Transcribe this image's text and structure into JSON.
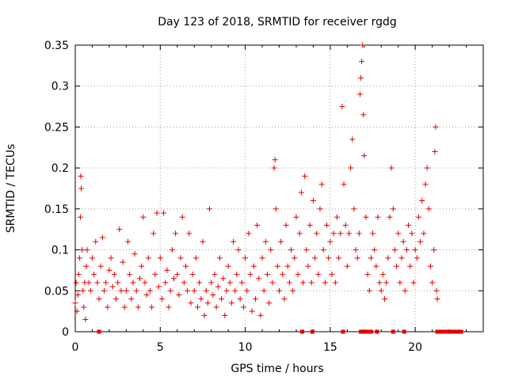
{
  "chart_data": {
    "type": "scatter",
    "title": "Day 123 of 2018, SRMTID for receiver rgdg",
    "xlabel": "GPS time / hours",
    "ylabel": "SRMTID / TECUs",
    "xlim": [
      0,
      24
    ],
    "ylim": [
      0,
      0.35
    ],
    "x_ticks": [
      0,
      5,
      10,
      15,
      20
    ],
    "x_tick_labels": [
      "0",
      "5",
      "10",
      "15",
      "20"
    ],
    "y_ticks": [
      0,
      0.05,
      0.1,
      0.15,
      0.2,
      0.25,
      0.3,
      0.35
    ],
    "y_tick_labels": [
      "0",
      "0.05",
      "0.1",
      "0.15",
      "0.2",
      "0.25",
      "0.3",
      "0.35"
    ],
    "grid": true,
    "marker": "plus",
    "color": "#e00000",
    "series": [
      {
        "name": "SRMTID",
        "points": [
          [
            0.0,
            0.035
          ],
          [
            0.05,
            0.06
          ],
          [
            0.1,
            0.025
          ],
          [
            0.15,
            0.045
          ],
          [
            0.2,
            0.07
          ],
          [
            0.25,
            0.09
          ],
          [
            0.3,
            0.14
          ],
          [
            0.32,
            0.19
          ],
          [
            0.35,
            0.175
          ],
          [
            0.4,
            0.1
          ],
          [
            0.45,
            0.05
          ],
          [
            0.5,
            0.03
          ],
          [
            0.55,
            0.06
          ],
          [
            0.6,
            0.015
          ],
          [
            0.65,
            0.08
          ],
          [
            0.7,
            0.1
          ],
          [
            0.8,
            0.06
          ],
          [
            0.9,
            0.05
          ],
          [
            1.0,
            0.09
          ],
          [
            1.1,
            0.07
          ],
          [
            1.2,
            0.11
          ],
          [
            1.3,
            0.06
          ],
          [
            1.4,
            0.04
          ],
          [
            1.5,
            0.08
          ],
          [
            1.6,
            0.115
          ],
          [
            1.7,
            0.05
          ],
          [
            1.8,
            0.06
          ],
          [
            1.9,
            0.03
          ],
          [
            2.0,
            0.075
          ],
          [
            2.1,
            0.09
          ],
          [
            2.2,
            0.055
          ],
          [
            2.3,
            0.07
          ],
          [
            2.4,
            0.04
          ],
          [
            2.5,
            0.06
          ],
          [
            2.6,
            0.125
          ],
          [
            2.7,
            0.05
          ],
          [
            2.8,
            0.085
          ],
          [
            2.9,
            0.03
          ],
          [
            3.0,
            0.05
          ],
          [
            3.1,
            0.11
          ],
          [
            3.2,
            0.07
          ],
          [
            3.3,
            0.04
          ],
          [
            3.4,
            0.06
          ],
          [
            3.5,
            0.095
          ],
          [
            3.6,
            0.05
          ],
          [
            3.7,
            0.03
          ],
          [
            3.8,
            0.065
          ],
          [
            3.9,
            0.08
          ],
          [
            4.0,
            0.14
          ],
          [
            4.1,
            0.06
          ],
          [
            4.2,
            0.045
          ],
          [
            4.3,
            0.09
          ],
          [
            4.4,
            0.05
          ],
          [
            4.5,
            0.03
          ],
          [
            4.6,
            0.12
          ],
          [
            4.7,
            0.07
          ],
          [
            4.8,
            0.145
          ],
          [
            4.9,
            0.055
          ],
          [
            5.0,
            0.09
          ],
          [
            5.1,
            0.04
          ],
          [
            5.2,
            0.145
          ],
          [
            5.3,
            0.06
          ],
          [
            5.4,
            0.075
          ],
          [
            5.5,
            0.03
          ],
          [
            5.6,
            0.05
          ],
          [
            5.7,
            0.1
          ],
          [
            5.8,
            0.065
          ],
          [
            5.9,
            0.12
          ],
          [
            6.0,
            0.07
          ],
          [
            6.1,
            0.045
          ],
          [
            6.2,
            0.09
          ],
          [
            6.3,
            0.14
          ],
          [
            6.4,
            0.06
          ],
          [
            6.5,
            0.08
          ],
          [
            6.6,
            0.05
          ],
          [
            6.7,
            0.12
          ],
          [
            6.8,
            0.035
          ],
          [
            6.9,
            0.07
          ],
          [
            7.0,
            0.05
          ],
          [
            7.1,
            0.09
          ],
          [
            7.2,
            0.03
          ],
          [
            7.3,
            0.06
          ],
          [
            7.4,
            0.04
          ],
          [
            7.5,
            0.11
          ],
          [
            7.6,
            0.02
          ],
          [
            7.7,
            0.05
          ],
          [
            7.8,
            0.035
          ],
          [
            7.9,
            0.15
          ],
          [
            8.0,
            0.06
          ],
          [
            8.1,
            0.045
          ],
          [
            8.2,
            0.07
          ],
          [
            8.3,
            0.03
          ],
          [
            8.4,
            0.055
          ],
          [
            8.5,
            0.09
          ],
          [
            8.6,
            0.04
          ],
          [
            8.7,
            0.065
          ],
          [
            8.8,
            0.02
          ],
          [
            8.9,
            0.05
          ],
          [
            9.0,
            0.08
          ],
          [
            9.1,
            0.06
          ],
          [
            9.2,
            0.035
          ],
          [
            9.3,
            0.11
          ],
          [
            9.4,
            0.05
          ],
          [
            9.5,
            0.07
          ],
          [
            9.6,
            0.1
          ],
          [
            9.7,
            0.04
          ],
          [
            9.8,
            0.06
          ],
          [
            9.9,
            0.03
          ],
          [
            10.0,
            0.09
          ],
          [
            10.1,
            0.05
          ],
          [
            10.2,
            0.12
          ],
          [
            10.3,
            0.07
          ],
          [
            10.4,
            0.025
          ],
          [
            10.5,
            0.08
          ],
          [
            10.6,
            0.04
          ],
          [
            10.7,
            0.13
          ],
          [
            10.8,
            0.065
          ],
          [
            10.9,
            0.02
          ],
          [
            11.0,
            0.09
          ],
          [
            11.1,
            0.05
          ],
          [
            11.2,
            0.11
          ],
          [
            11.3,
            0.07
          ],
          [
            11.4,
            0.035
          ],
          [
            11.5,
            0.1
          ],
          [
            11.6,
            0.06
          ],
          [
            11.7,
            0.2
          ],
          [
            11.75,
            0.21
          ],
          [
            11.8,
            0.15
          ],
          [
            11.9,
            0.08
          ],
          [
            12.0,
            0.05
          ],
          [
            12.1,
            0.11
          ],
          [
            12.2,
            0.07
          ],
          [
            12.3,
            0.04
          ],
          [
            12.4,
            0.13
          ],
          [
            12.5,
            0.08
          ],
          [
            12.6,
            0.06
          ],
          [
            12.7,
            0.1
          ],
          [
            12.8,
            0.05
          ],
          [
            12.9,
            0.09
          ],
          [
            13.0,
            0.14
          ],
          [
            13.1,
            0.07
          ],
          [
            13.2,
            0.12
          ],
          [
            13.3,
            0.17
          ],
          [
            13.4,
            0.06
          ],
          [
            13.5,
            0.19
          ],
          [
            13.6,
            0.1
          ],
          [
            13.7,
            0.08
          ],
          [
            13.8,
            0.13
          ],
          [
            13.9,
            0.06
          ],
          [
            14.0,
            0.16
          ],
          [
            14.1,
            0.09
          ],
          [
            14.2,
            0.12
          ],
          [
            14.3,
            0.07
          ],
          [
            14.4,
            0.15
          ],
          [
            14.5,
            0.18
          ],
          [
            14.6,
            0.1
          ],
          [
            14.7,
            0.06
          ],
          [
            14.8,
            0.13
          ],
          [
            14.9,
            0.09
          ],
          [
            15.0,
            0.11
          ],
          [
            15.1,
            0.07
          ],
          [
            15.2,
            0.12
          ],
          [
            15.3,
            0.06
          ],
          [
            15.4,
            0.14
          ],
          [
            15.5,
            0.09
          ],
          [
            15.6,
            0.12
          ],
          [
            15.7,
            0.275
          ],
          [
            15.8,
            0.18
          ],
          [
            15.9,
            0.13
          ],
          [
            16.0,
            0.08
          ],
          [
            16.1,
            0.12
          ],
          [
            16.2,
            0.2
          ],
          [
            16.3,
            0.235
          ],
          [
            16.4,
            0.15
          ],
          [
            16.5,
            0.1
          ],
          [
            16.6,
            0.09
          ],
          [
            16.7,
            0.12
          ],
          [
            16.75,
            0.29
          ],
          [
            16.8,
            0.31
          ],
          [
            16.85,
            0.33
          ],
          [
            16.9,
            0.35
          ],
          [
            16.95,
            0.265
          ],
          [
            17.0,
            0.215
          ],
          [
            17.1,
            0.14
          ],
          [
            17.2,
            0.07
          ],
          [
            17.3,
            0.05
          ],
          [
            17.4,
            0.09
          ],
          [
            17.5,
            0.12
          ],
          [
            17.6,
            0.1
          ],
          [
            17.7,
            0.08
          ],
          [
            17.8,
            0.14
          ],
          [
            17.9,
            0.06
          ],
          [
            18.0,
            0.05
          ],
          [
            18.1,
            0.07
          ],
          [
            18.2,
            0.04
          ],
          [
            18.3,
            0.06
          ],
          [
            18.4,
            0.09
          ],
          [
            18.5,
            0.14
          ],
          [
            18.6,
            0.2
          ],
          [
            18.7,
            0.15
          ],
          [
            18.8,
            0.1
          ],
          [
            18.9,
            0.08
          ],
          [
            19.0,
            0.12
          ],
          [
            19.1,
            0.06
          ],
          [
            19.2,
            0.09
          ],
          [
            19.3,
            0.11
          ],
          [
            19.4,
            0.05
          ],
          [
            19.5,
            0.1
          ],
          [
            19.6,
            0.13
          ],
          [
            19.7,
            0.08
          ],
          [
            19.8,
            0.12
          ],
          [
            19.9,
            0.06
          ],
          [
            20.0,
            0.1
          ],
          [
            20.1,
            0.09
          ],
          [
            20.2,
            0.14
          ],
          [
            20.3,
            0.11
          ],
          [
            20.4,
            0.16
          ],
          [
            20.5,
            0.12
          ],
          [
            20.6,
            0.18
          ],
          [
            20.7,
            0.2
          ],
          [
            20.8,
            0.15
          ],
          [
            20.9,
            0.08
          ],
          [
            21.0,
            0.06
          ],
          [
            21.1,
            0.1
          ],
          [
            21.15,
            0.22
          ],
          [
            21.2,
            0.25
          ],
          [
            21.25,
            0.05
          ],
          [
            21.3,
            0.04
          ],
          [
            1.4,
            0.0
          ],
          [
            13.35,
            0.0
          ],
          [
            13.95,
            0.0
          ],
          [
            15.75,
            0.0
          ],
          [
            16.8,
            0.0
          ],
          [
            17.0,
            0.0
          ],
          [
            17.2,
            0.0
          ],
          [
            17.4,
            0.0
          ],
          [
            17.75,
            0.0
          ],
          [
            18.7,
            0.0
          ],
          [
            19.35,
            0.0
          ],
          [
            21.3,
            0.0
          ],
          [
            21.5,
            0.0
          ],
          [
            21.7,
            0.0
          ],
          [
            21.9,
            0.0
          ],
          [
            22.1,
            0.0
          ],
          [
            22.3,
            0.0
          ],
          [
            22.5,
            0.0
          ],
          [
            22.7,
            0.0
          ]
        ]
      }
    ]
  }
}
